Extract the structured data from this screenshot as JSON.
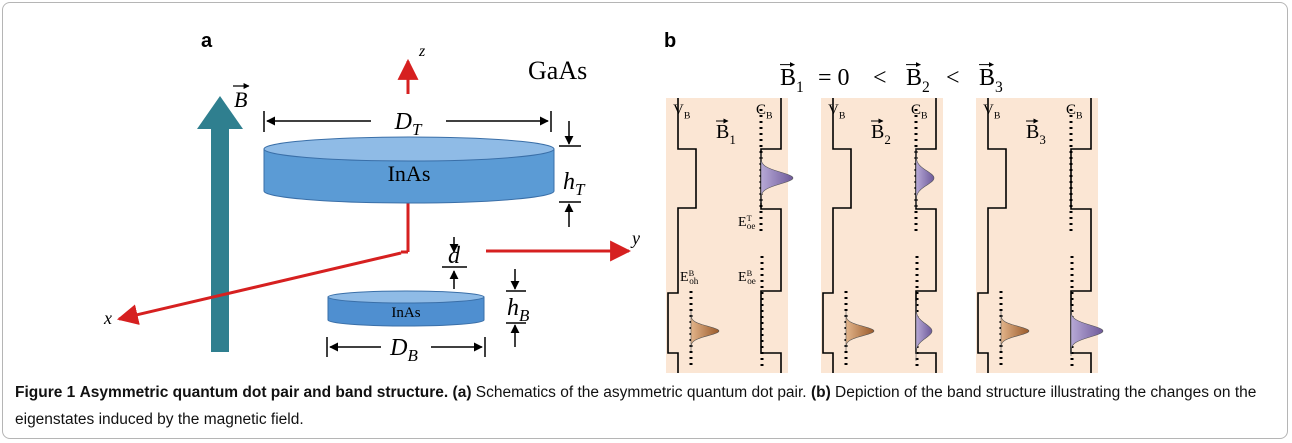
{
  "panel_a": {
    "label": "a",
    "axes": {
      "z": "z",
      "y": "y",
      "x": "x"
    },
    "material": "GaAs",
    "field": "B",
    "top_dot": "InAs",
    "bottom_dot": "InAs",
    "dimensions": {
      "D_T": {
        "text": "D",
        "sub": "T"
      },
      "h_T": {
        "text": "h",
        "sub": "T"
      },
      "d": "d",
      "h_B": {
        "text": "h",
        "sub": "B"
      },
      "D_B": {
        "text": "D",
        "sub": "B"
      }
    }
  },
  "panel_b": {
    "label": "b",
    "relation": [
      {
        "text": "B",
        "sub": "1"
      },
      {
        "text": "= 0"
      },
      {
        "text": "<"
      },
      {
        "text": "B",
        "sub": "2"
      },
      {
        "text": "<"
      },
      {
        "text": "B",
        "sub": "3"
      }
    ],
    "columns": [
      {
        "vb": {
          "text": "V",
          "sub": "B"
        },
        "cb": {
          "text": "C",
          "sub": "B"
        },
        "field": {
          "text": "B",
          "sub": "1"
        },
        "levels": {
          "e_top": {
            "text": "E",
            "sup": "T",
            "sub": "oe"
          },
          "h_bottom": {
            "text": "E",
            "sup": "B",
            "sub": "oh"
          },
          "e_bottom": {
            "text": "E",
            "sup": "B",
            "sub": "oe"
          }
        }
      },
      {
        "vb": {
          "text": "V",
          "sub": "B"
        },
        "cb": {
          "text": "C",
          "sub": "B"
        },
        "field": {
          "text": "B",
          "sub": "2"
        }
      },
      {
        "vb": {
          "text": "V",
          "sub": "B"
        },
        "cb": {
          "text": "C",
          "sub": "B"
        },
        "field": {
          "text": "B",
          "sub": "3"
        }
      }
    ]
  },
  "caption": {
    "figure_label": "Figure 1",
    "title": "Asymmetric quantum dot pair and band structure.",
    "part_a_label": "(a)",
    "part_a": "Schematics of the asymmetric quantum dot pair.",
    "part_b_label": "(b)",
    "part_b": "Depiction of the band structure illustrating the changes on the eigenstates induced by the magnetic field."
  }
}
